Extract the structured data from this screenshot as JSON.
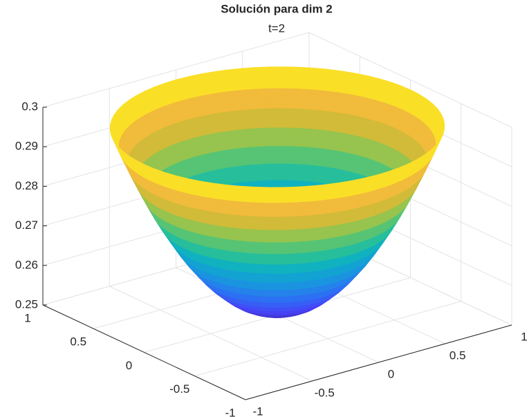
{
  "chart_data": {
    "type": "surface",
    "title": "Solución para dim 2",
    "subtitle": "t=2",
    "r": [
      0,
      0.05,
      0.1,
      0.15,
      0.2,
      0.25,
      0.3,
      0.35,
      0.4,
      0.45,
      0.5,
      0.55,
      0.6,
      0.65,
      0.7,
      0.75,
      0.8,
      0.85,
      0.9,
      0.95,
      1
    ],
    "values": [
      0.2505,
      0.2506,
      0.251,
      0.2516,
      0.2524,
      0.2534,
      0.2547,
      0.2563,
      0.258,
      0.26,
      0.2623,
      0.2647,
      0.2674,
      0.2704,
      0.2735,
      0.2769,
      0.2806,
      0.2845,
      0.2886,
      0.2929,
      0.2975
    ],
    "xlim": [
      -1,
      1
    ],
    "ylim": [
      -1,
      1
    ],
    "zlim": [
      0.25,
      0.3
    ],
    "xticks": [
      -1,
      -0.5,
      0,
      0.5,
      1
    ],
    "yticks": [
      -1,
      -0.5,
      0,
      0.5,
      1
    ],
    "zticks": [
      0.25,
      0.26,
      0.27,
      0.28,
      0.29,
      0.3
    ],
    "grid": true,
    "colormap": [
      "#3e26a8",
      "#4743f8",
      "#2d70f4",
      "#1b95e0",
      "#0cb0c5",
      "#31c38c",
      "#8bc652",
      "#d8ba35",
      "#fbbc3d",
      "#f9fb15"
    ]
  }
}
